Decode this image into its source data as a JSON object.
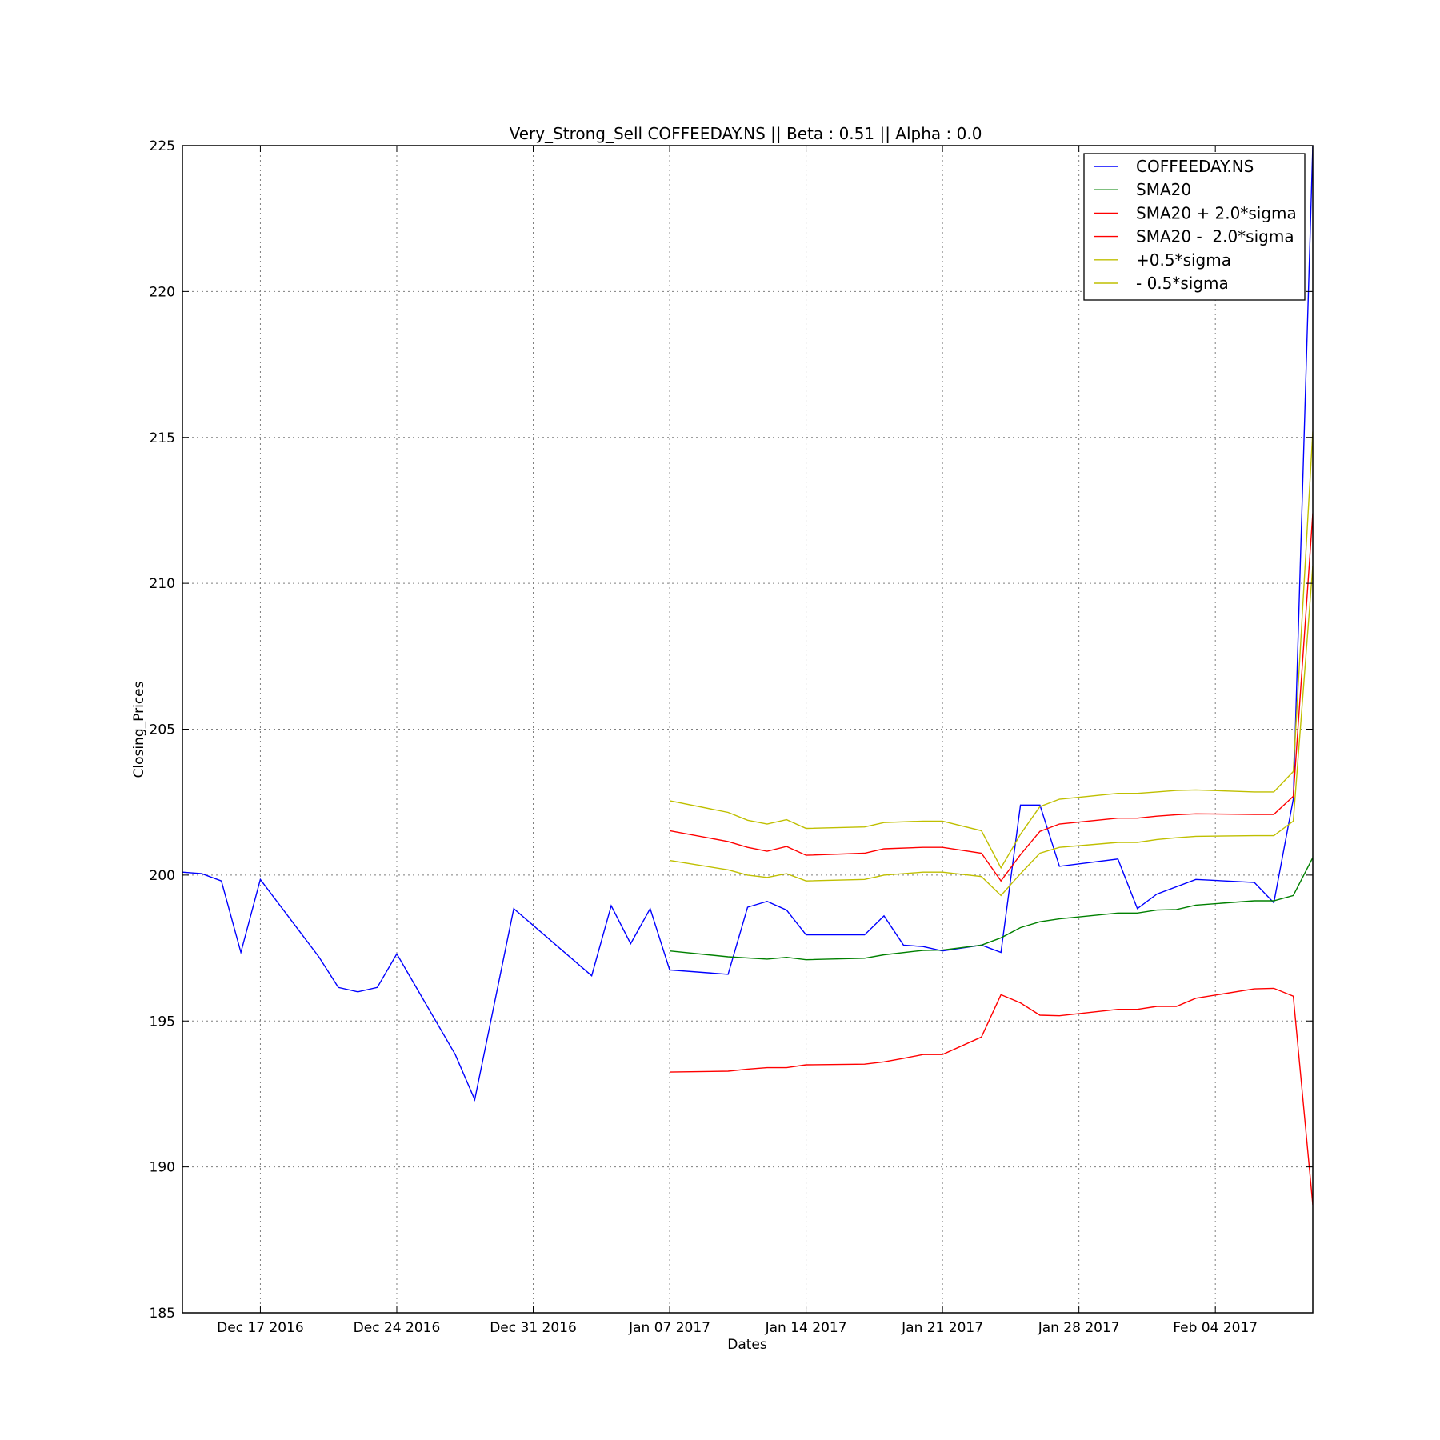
{
  "chart_data": {
    "type": "line",
    "title": "Very_Strong_Sell COFFEEDAY.NS || Beta : 0.51 || Alpha : 0.0",
    "xlabel": "Dates",
    "ylabel": "Closing_Prices",
    "xlim": [
      "2016-12-13",
      "2017-02-08"
    ],
    "ylim": [
      185,
      225
    ],
    "yticks": [
      185,
      190,
      195,
      200,
      205,
      210,
      215,
      220,
      225
    ],
    "xticks": [
      {
        "date": "2016-12-17",
        "label": "Dec 17 2016"
      },
      {
        "date": "2016-12-24",
        "label": "Dec 24 2016"
      },
      {
        "date": "2016-12-31",
        "label": "Dec 31 2016"
      },
      {
        "date": "2017-01-07",
        "label": "Jan 07 2017"
      },
      {
        "date": "2017-01-14",
        "label": "Jan 14 2017"
      },
      {
        "date": "2017-01-21",
        "label": "Jan 21 2017"
      },
      {
        "date": "2017-01-28",
        "label": "Jan 28 2017"
      },
      {
        "date": "2017-02-04",
        "label": "Feb 04 2017"
      }
    ],
    "grid": true,
    "legend_position": "top-right",
    "series": [
      {
        "name": "COFFEEDAY.NS",
        "color": "#0000ff",
        "points": [
          [
            "2016-12-13",
            200.1
          ],
          [
            "2016-12-14",
            200.05
          ],
          [
            "2016-12-15",
            199.8
          ],
          [
            "2016-12-16",
            197.35
          ],
          [
            "2016-12-17",
            199.85
          ],
          [
            "2016-12-20",
            197.2
          ],
          [
            "2016-12-21",
            196.15
          ],
          [
            "2016-12-22",
            196.0
          ],
          [
            "2016-12-23",
            196.15
          ],
          [
            "2016-12-24",
            197.3
          ],
          [
            "2016-12-27",
            193.85
          ],
          [
            "2016-12-28",
            192.3
          ],
          [
            "2016-12-30",
            198.85
          ],
          [
            "2017-01-03",
            196.55
          ],
          [
            "2017-01-04",
            198.95
          ],
          [
            "2017-01-05",
            197.65
          ],
          [
            "2017-01-06",
            198.85
          ],
          [
            "2017-01-07",
            196.75
          ],
          [
            "2017-01-10",
            196.6
          ],
          [
            "2017-01-11",
            198.9
          ],
          [
            "2017-01-12",
            199.1
          ],
          [
            "2017-01-13",
            198.8
          ],
          [
            "2017-01-14",
            197.95
          ],
          [
            "2017-01-17",
            197.95
          ],
          [
            "2017-01-18",
            198.6
          ],
          [
            "2017-01-19",
            197.6
          ],
          [
            "2017-01-20",
            197.55
          ],
          [
            "2017-01-21",
            197.4
          ],
          [
            "2017-01-23",
            197.6
          ],
          [
            "2017-01-24",
            197.35
          ],
          [
            "2017-01-25",
            202.4
          ],
          [
            "2017-01-26",
            202.4
          ],
          [
            "2017-01-27",
            200.3
          ],
          [
            "2017-01-30",
            200.55
          ],
          [
            "2017-01-31",
            198.85
          ],
          [
            "2017-02-01",
            199.35
          ],
          [
            "2017-02-03",
            199.85
          ],
          [
            "2017-02-06",
            199.75
          ],
          [
            "2017-02-07",
            199.05
          ],
          [
            "2017-02-08",
            202.6
          ],
          [
            "2017-02-09",
            225.0
          ]
        ]
      },
      {
        "name": "SMA20",
        "color": "#008000",
        "points": [
          [
            "2017-01-07",
            197.4
          ],
          [
            "2017-01-10",
            197.2
          ],
          [
            "2017-01-12",
            197.12
          ],
          [
            "2017-01-13",
            197.18
          ],
          [
            "2017-01-14",
            197.1
          ],
          [
            "2017-01-17",
            197.15
          ],
          [
            "2017-01-18",
            197.27
          ],
          [
            "2017-01-20",
            197.42
          ],
          [
            "2017-01-21",
            197.43
          ],
          [
            "2017-01-23",
            197.6
          ],
          [
            "2017-01-24",
            197.85
          ],
          [
            "2017-01-25",
            198.2
          ],
          [
            "2017-01-26",
            198.4
          ],
          [
            "2017-01-27",
            198.5
          ],
          [
            "2017-01-30",
            198.7
          ],
          [
            "2017-01-31",
            198.7
          ],
          [
            "2017-02-01",
            198.8
          ],
          [
            "2017-02-02",
            198.82
          ],
          [
            "2017-02-03",
            198.97
          ],
          [
            "2017-02-06",
            199.12
          ],
          [
            "2017-02-07",
            199.12
          ],
          [
            "2017-02-08",
            199.3
          ],
          [
            "2017-02-09",
            200.6
          ]
        ]
      },
      {
        "name": "SMA20 + 2.0*sigma",
        "color": "#ff0000",
        "points": [
          [
            "2017-01-07",
            201.52
          ],
          [
            "2017-01-10",
            201.15
          ],
          [
            "2017-01-11",
            200.95
          ],
          [
            "2017-01-12",
            200.82
          ],
          [
            "2017-01-13",
            200.98
          ],
          [
            "2017-01-14",
            200.68
          ],
          [
            "2017-01-17",
            200.75
          ],
          [
            "2017-01-18",
            200.9
          ],
          [
            "2017-01-20",
            200.95
          ],
          [
            "2017-01-21",
            200.95
          ],
          [
            "2017-01-23",
            200.75
          ],
          [
            "2017-01-24",
            199.8
          ],
          [
            "2017-01-25",
            200.7
          ],
          [
            "2017-01-26",
            201.5
          ],
          [
            "2017-01-27",
            201.75
          ],
          [
            "2017-01-30",
            201.95
          ],
          [
            "2017-01-31",
            201.95
          ],
          [
            "2017-02-01",
            202.02
          ],
          [
            "2017-02-02",
            202.07
          ],
          [
            "2017-02-03",
            202.1
          ],
          [
            "2017-02-06",
            202.08
          ],
          [
            "2017-02-07",
            202.08
          ],
          [
            "2017-02-08",
            202.7
          ],
          [
            "2017-02-09",
            212.4
          ]
        ]
      },
      {
        "name": "SMA20 -  2.0*sigma",
        "color": "#ff0000",
        "points": [
          [
            "2017-01-07",
            193.25
          ],
          [
            "2017-01-10",
            193.28
          ],
          [
            "2017-01-11",
            193.35
          ],
          [
            "2017-01-12",
            193.4
          ],
          [
            "2017-01-13",
            193.4
          ],
          [
            "2017-01-14",
            193.5
          ],
          [
            "2017-01-17",
            193.52
          ],
          [
            "2017-01-18",
            193.6
          ],
          [
            "2017-01-19",
            193.72
          ],
          [
            "2017-01-20",
            193.85
          ],
          [
            "2017-01-21",
            193.85
          ],
          [
            "2017-01-23",
            194.45
          ],
          [
            "2017-01-24",
            195.9
          ],
          [
            "2017-01-25",
            195.62
          ],
          [
            "2017-01-26",
            195.2
          ],
          [
            "2017-01-27",
            195.18
          ],
          [
            "2017-01-30",
            195.4
          ],
          [
            "2017-01-31",
            195.4
          ],
          [
            "2017-02-01",
            195.5
          ],
          [
            "2017-02-02",
            195.5
          ],
          [
            "2017-02-03",
            195.78
          ],
          [
            "2017-02-06",
            196.1
          ],
          [
            "2017-02-07",
            196.12
          ],
          [
            "2017-02-08",
            195.85
          ],
          [
            "2017-02-09",
            188.7
          ]
        ]
      },
      {
        "name": "+0.5*sigma",
        "color": "#bfbf00",
        "points": [
          [
            "2017-01-07",
            202.55
          ],
          [
            "2017-01-10",
            202.15
          ],
          [
            "2017-01-11",
            201.88
          ],
          [
            "2017-01-12",
            201.75
          ],
          [
            "2017-01-13",
            201.9
          ],
          [
            "2017-01-14",
            201.6
          ],
          [
            "2017-01-17",
            201.65
          ],
          [
            "2017-01-18",
            201.8
          ],
          [
            "2017-01-20",
            201.85
          ],
          [
            "2017-01-21",
            201.85
          ],
          [
            "2017-01-23",
            201.52
          ],
          [
            "2017-01-24",
            200.25
          ],
          [
            "2017-01-25",
            201.4
          ],
          [
            "2017-01-26",
            202.35
          ],
          [
            "2017-01-27",
            202.6
          ],
          [
            "2017-01-30",
            202.8
          ],
          [
            "2017-01-31",
            202.8
          ],
          [
            "2017-02-01",
            202.85
          ],
          [
            "2017-02-02",
            202.9
          ],
          [
            "2017-02-03",
            202.92
          ],
          [
            "2017-02-06",
            202.85
          ],
          [
            "2017-02-07",
            202.85
          ],
          [
            "2017-02-08",
            203.55
          ],
          [
            "2017-02-09",
            215.2
          ]
        ]
      },
      {
        "name": "- 0.5*sigma",
        "color": "#bfbf00",
        "points": [
          [
            "2017-01-07",
            200.5
          ],
          [
            "2017-01-10",
            200.18
          ],
          [
            "2017-01-11",
            200.0
          ],
          [
            "2017-01-12",
            199.92
          ],
          [
            "2017-01-13",
            200.05
          ],
          [
            "2017-01-14",
            199.8
          ],
          [
            "2017-01-17",
            199.85
          ],
          [
            "2017-01-18",
            200.0
          ],
          [
            "2017-01-20",
            200.1
          ],
          [
            "2017-01-21",
            200.1
          ],
          [
            "2017-01-23",
            199.95
          ],
          [
            "2017-01-24",
            199.3
          ],
          [
            "2017-01-25",
            200.05
          ],
          [
            "2017-01-26",
            200.75
          ],
          [
            "2017-01-27",
            200.95
          ],
          [
            "2017-01-30",
            201.12
          ],
          [
            "2017-01-31",
            201.12
          ],
          [
            "2017-02-01",
            201.22
          ],
          [
            "2017-02-02",
            201.28
          ],
          [
            "2017-02-03",
            201.33
          ],
          [
            "2017-02-06",
            201.35
          ],
          [
            "2017-02-07",
            201.35
          ],
          [
            "2017-02-08",
            201.85
          ],
          [
            "2017-02-09",
            210.6
          ]
        ]
      }
    ]
  }
}
